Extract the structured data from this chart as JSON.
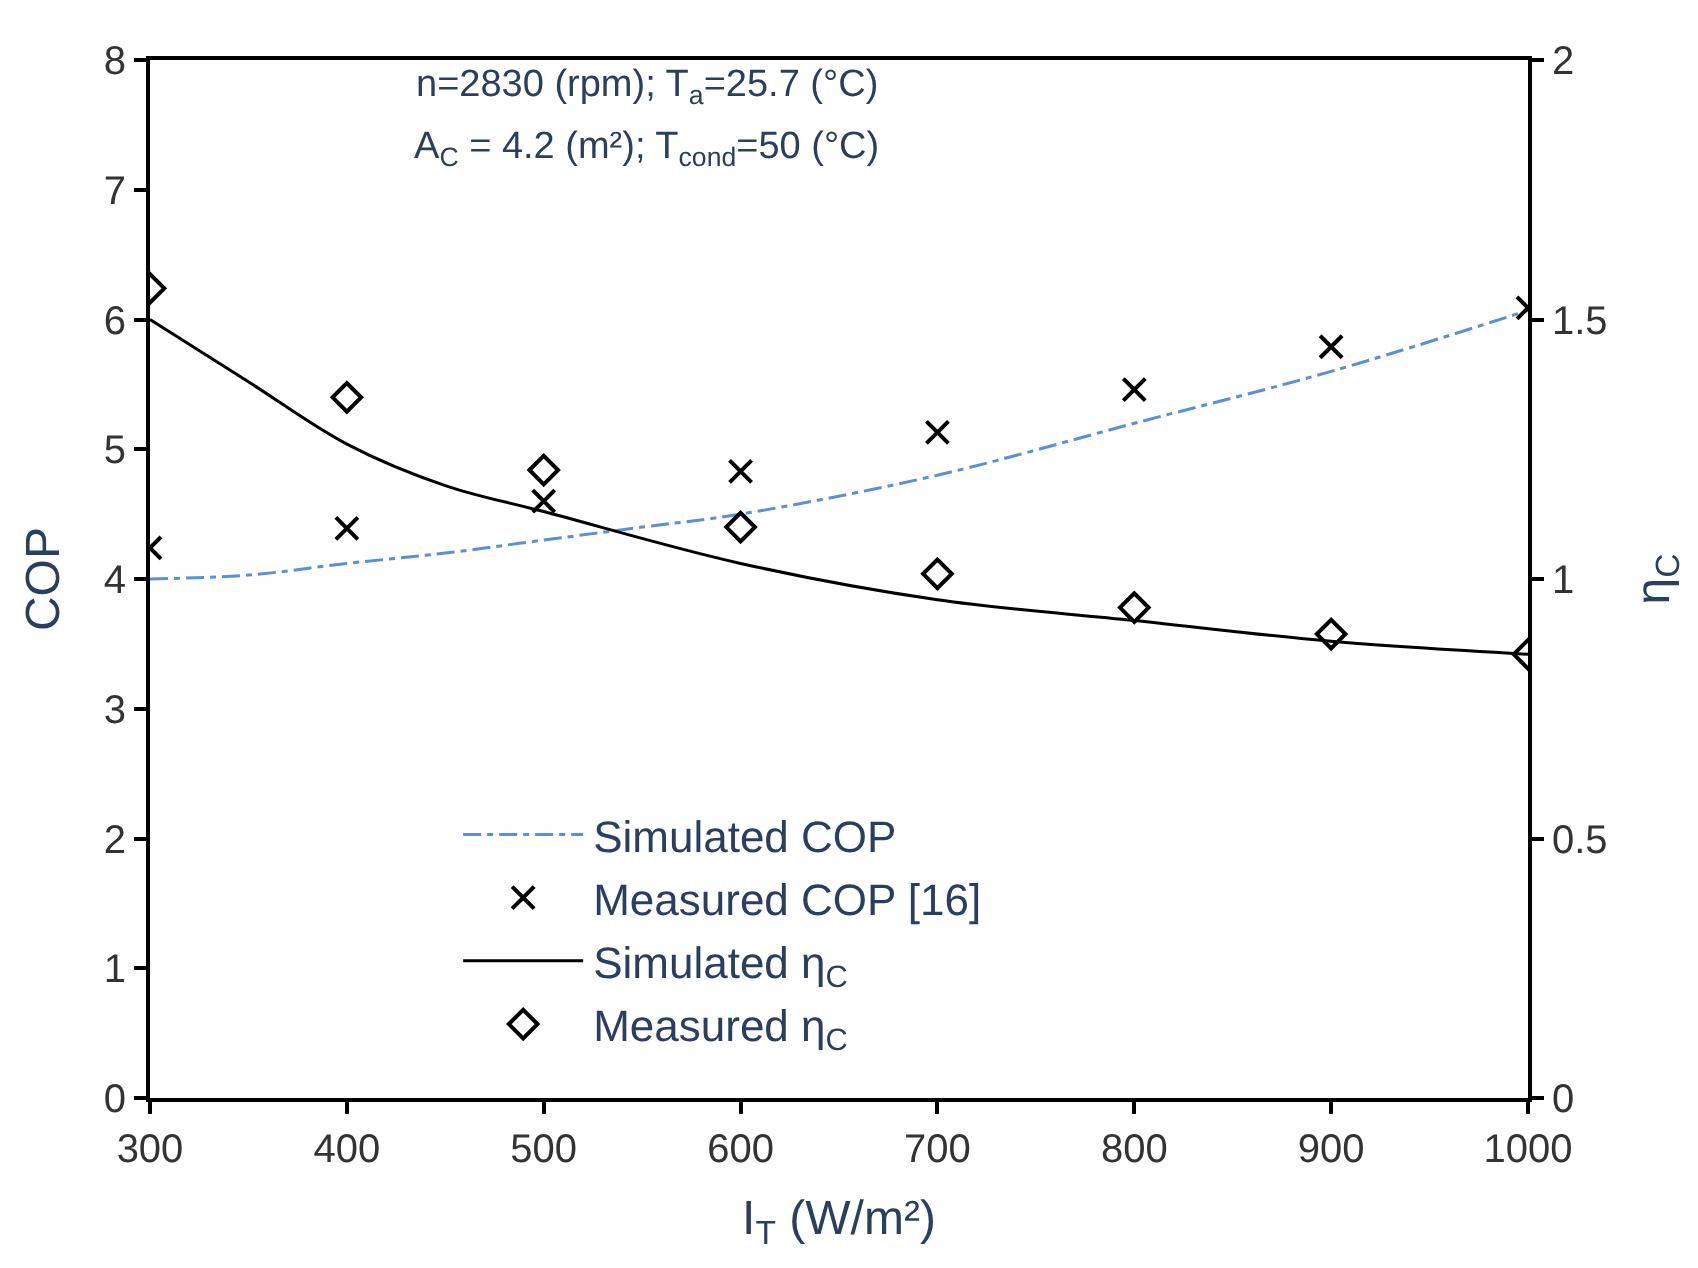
{
  "chart_data": {
    "type": "line",
    "xlabel": "I$_{T}$ (W/m²)",
    "ylabel": "COP",
    "y2label": "η$_{C}$",
    "annotations": [
      "n=2830 (rpm); T$_{a}$=25.7 (°C)",
      "A$_{C}$ = 4.2 (m²); T$_{cond}$=50 (°C)"
    ],
    "xlim": [
      300,
      1000
    ],
    "xticks": [
      300,
      400,
      500,
      600,
      700,
      800,
      900,
      1000
    ],
    "ylim": [
      0,
      8
    ],
    "yticks": [
      0,
      1,
      2,
      3,
      4,
      5,
      6,
      7,
      8
    ],
    "y2lim": [
      0,
      2
    ],
    "y2ticks": [
      0,
      0.5,
      1,
      1.5,
      2
    ],
    "grid": false,
    "legend": "bottom",
    "series": [
      {
        "name": "Simulated COP",
        "color": "#5b8fd6",
        "line_style": "dashdot",
        "marker": "none",
        "x": [
          300,
          350,
          400,
          450,
          500,
          550,
          600,
          700,
          800,
          900,
          1000
        ],
        "values": [
          4.0,
          4.03,
          4.12,
          4.2,
          4.3,
          4.4,
          4.5,
          4.8,
          5.2,
          5.6,
          6.07
        ]
      },
      {
        "name": "Measured COP [16]",
        "type": "scatter",
        "color": "#000000",
        "marker": "cross",
        "x": [
          300,
          400,
          500,
          600,
          700,
          800,
          900,
          1000
        ],
        "values": [
          4.24,
          4.39,
          4.6,
          4.83,
          5.13,
          5.46,
          5.79,
          6.09
        ]
      },
      {
        "name": "Simulated η$_{C}$",
        "axis": "y2",
        "color": "#000000",
        "line_style": "solid",
        "marker": "none",
        "x": [
          300,
          350,
          400,
          450,
          500,
          600,
          700,
          800,
          900,
          1000
        ],
        "values": [
          1.5,
          1.38,
          1.26,
          1.18,
          1.13,
          1.03,
          0.96,
          0.92,
          0.88,
          0.855
        ]
      },
      {
        "name": "Measured η$_{C}$",
        "type": "scatter",
        "axis": "y2",
        "color": "#000000",
        "marker": "diamond",
        "x": [
          300,
          400,
          500,
          600,
          700,
          800,
          900,
          1000
        ],
        "values": [
          1.56,
          1.35,
          1.21,
          1.1,
          1.01,
          0.945,
          0.894,
          0.855
        ]
      }
    ]
  }
}
